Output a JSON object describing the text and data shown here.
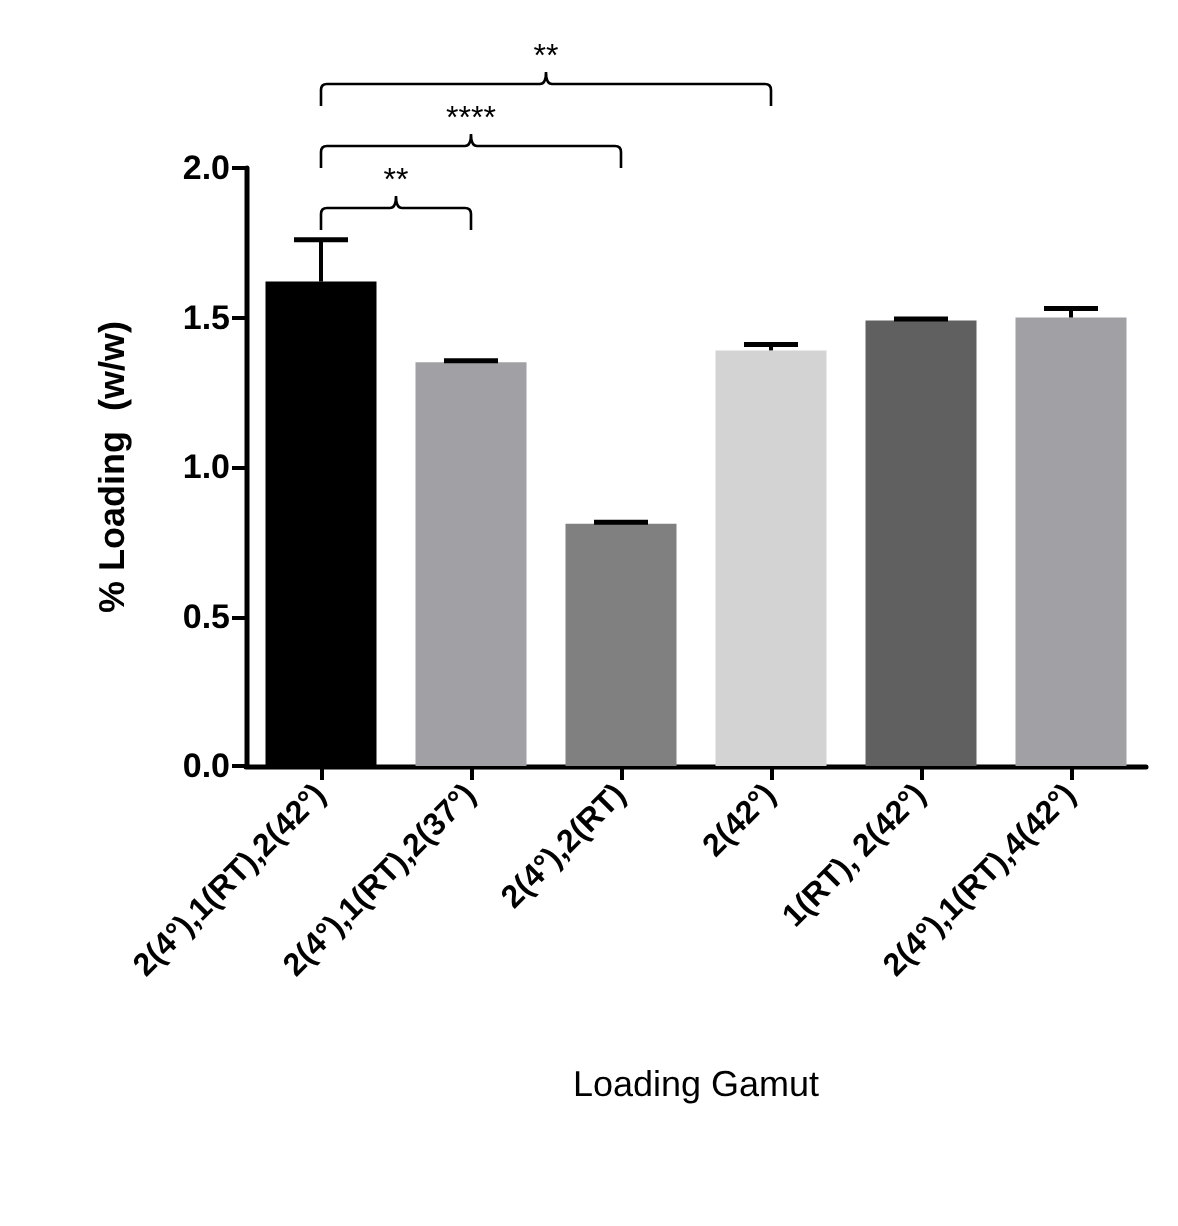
{
  "chart_data": {
    "type": "bar",
    "xlabel": "Loading Gamut",
    "ylabel": "% Loading  (w/w)",
    "categories": [
      "2(4°),1(RT),2(42°)",
      "2(4°),1(RT),2(37°)",
      "2(4°),2(RT)",
      "2(42°)",
      "1(RT), 2(42°)",
      "2(4°),1(RT),4(42°)"
    ],
    "values": [
      1.62,
      1.35,
      0.81,
      1.39,
      1.49,
      1.5
    ],
    "errors": [
      0.14,
      0.005,
      0.005,
      0.02,
      0.005,
      0.03
    ],
    "colors": [
      "#000000",
      "#a0a0a5",
      "#808080",
      "#d3d3d3",
      "#606060",
      "#a0a0a5"
    ],
    "ylim": [
      0,
      2.0
    ],
    "yticks": [
      {
        "value": 0,
        "label": "0.0"
      },
      0.5,
      {
        "value": 1,
        "label": "1.0"
      },
      1.5,
      {
        "value": 2,
        "label": "2.0"
      }
    ],
    "grid": false,
    "annotations": [
      "**",
      "****",
      "**"
    ]
  }
}
